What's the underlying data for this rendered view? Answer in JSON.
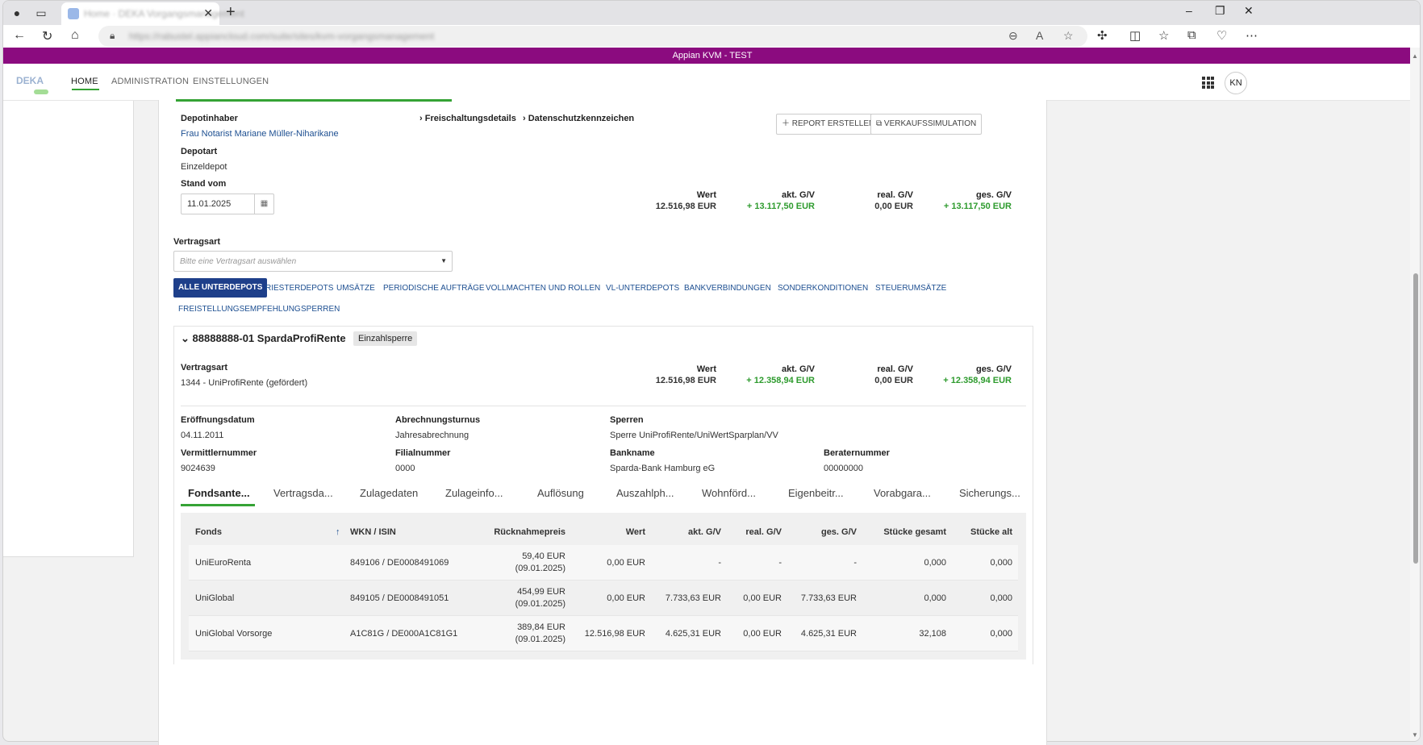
{
  "browser": {
    "tab_title": "Home · DEKA Vorgangsmanagement",
    "url": "https://rabustel.appiancloud.com/suite/sites/kvm-vorgangsmanagement",
    "close_symbol": "✕",
    "new_tab_symbol": "+"
  },
  "app": {
    "title": "Appian KVM - TEST",
    "logo_text": "DEKA",
    "nav": [
      "HOME",
      "ADMINISTRATION",
      "EINSTELLUNGEN"
    ],
    "avatar": "KN"
  },
  "depot": {
    "holder_label": "Depotinhaber",
    "holder_name": "Frau Notarist Mariane Müller-Niharikane",
    "type_label": "Depotart",
    "type_value": "Einzeldepot",
    "date_label": "Stand vom",
    "date_value": "11.01.2025",
    "link_release": "Freischaltungsdetails",
    "link_privacy": "Datenschutzkennzeichen",
    "btn_report": "REPORT ERSTELLEN",
    "btn_sale": "VERKAUFSSIMULATION",
    "summary": [
      {
        "label": "Wert",
        "value": "12.516,98 EUR",
        "green": false
      },
      {
        "label": "akt. G/V",
        "value": "+ 13.117,50 EUR",
        "green": true
      },
      {
        "label": "real. G/V",
        "value": "0,00 EUR",
        "green": false
      },
      {
        "label": "ges. G/V",
        "value": "+ 13.117,50 EUR",
        "green": true
      }
    ],
    "contract_label": "Vertragsart",
    "contract_placeholder": "Bitte eine Vertragsart auswählen"
  },
  "tabs": [
    "ALLE UNTERDEPOTS",
    "RIESTERDEPOTS",
    "UMSÄTZE",
    "PERIODISCHE AUFTRÄGE",
    "VOLLMACHTEN UND ROLLEN",
    "VL-UNTERDEPOTS",
    "BANKVERBINDUNGEN",
    "SONDERKONDITIONEN",
    "STEUERUMSÄTZE",
    "FREISTELLUNGSEMPFEHLUNG",
    "SPERREN"
  ],
  "subdepot": {
    "title": "88888888-01 SpardaProfiRente",
    "badge": "Einzahlsperre",
    "contract_label": "Vertragsart",
    "contract_value": "1344 - UniProfiRente (gefördert)",
    "summary": [
      {
        "label": "Wert",
        "value": "12.516,98 EUR",
        "green": false
      },
      {
        "label": "akt. G/V",
        "value": "+ 12.358,94 EUR",
        "green": true
      },
      {
        "label": "real. G/V",
        "value": "0,00 EUR",
        "green": false
      },
      {
        "label": "ges. G/V",
        "value": "+ 12.358,94 EUR",
        "green": true
      }
    ],
    "details": [
      {
        "label": "Eröffnungsdatum",
        "value": "04.11.2011"
      },
      {
        "label": "Abrechnungsturnus",
        "value": "Jahresabrechnung"
      },
      {
        "label": "Sperren",
        "value": "Sperre UniProfiRente/UniWertSparplan/VV"
      },
      {
        "label": "Vermittlernummer",
        "value": "9024639"
      },
      {
        "label": "Filialnummer",
        "value": "0000"
      },
      {
        "label": "Bankname",
        "value": "Sparda-Bank Hamburg eG"
      },
      {
        "label": "Beraternummer",
        "value": "00000000"
      }
    ],
    "subtabs": [
      "Fondsante...",
      "Vertragsda...",
      "Zulagedaten",
      "Zulageinfo...",
      "Auflösung",
      "Auszahlph...",
      "Wohnförd...",
      "Eigenbeitr...",
      "Vorabgara...",
      "Sicherungs..."
    ]
  },
  "table": {
    "headers": [
      "Fonds",
      "WKN / ISIN",
      "Rücknahmepreis",
      "Wert",
      "akt. G/V",
      "real. G/V",
      "ges. G/V",
      "Stücke gesamt",
      "Stücke alt"
    ],
    "sort_icon": "↑",
    "rows": [
      {
        "fonds": "UniEuroRenta",
        "wkn": "849106 / DE0008491069",
        "price": "59,40 EUR",
        "price_date": "(09.01.2025)",
        "wert": "0,00 EUR",
        "akt": "-",
        "real": "-",
        "ges": "-",
        "stueck": "0,000",
        "alt": "0,000"
      },
      {
        "fonds": "UniGlobal",
        "wkn": "849105 / DE0008491051",
        "price": "454,99 EUR",
        "price_date": "(09.01.2025)",
        "wert": "0,00 EUR",
        "akt": "7.733,63 EUR",
        "real": "0,00 EUR",
        "ges": "7.733,63 EUR",
        "stueck": "0,000",
        "alt": "0,000"
      },
      {
        "fonds": "UniGlobal Vorsorge",
        "wkn": "A1C81G / DE000A1C81G1",
        "price": "389,84 EUR",
        "price_date": "(09.01.2025)",
        "wert": "12.516,98 EUR",
        "akt": "4.625,31 EUR",
        "real": "0,00 EUR",
        "ges": "4.625,31 EUR",
        "stueck": "32,108",
        "alt": "0,000"
      }
    ]
  }
}
